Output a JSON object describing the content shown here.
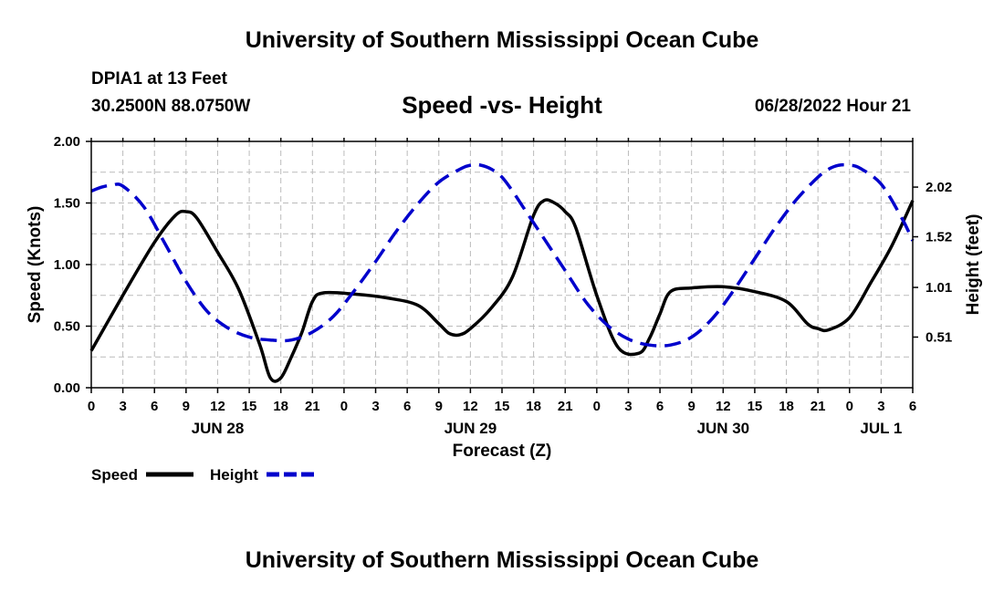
{
  "header": {
    "title": "University of Southern Mississippi Ocean Cube",
    "station": "DPIA1 at 13 Feet",
    "coords": "30.2500N  88.0750W",
    "chart_title": "Speed -vs- Height",
    "forecast_time": "06/28/2022 Hour 21"
  },
  "footer": {
    "title": "University of Southern Mississippi Ocean Cube"
  },
  "colors": {
    "speed": "#000000",
    "height": "#0000cc",
    "grid": "#bbbbbb"
  },
  "chart_data": {
    "type": "line",
    "title": "Speed -vs- Height",
    "xlabel": "Forecast (Z)",
    "ylabel": "Speed (Knots)",
    "y2label": "Height (feet)",
    "x_unit": "hours since JUN 28 00Z",
    "xlim": [
      0,
      78
    ],
    "ylim": [
      0,
      2.0
    ],
    "y2lim": [
      0.0,
      2.48
    ],
    "x_tick_labels": [
      "0",
      "3",
      "6",
      "9",
      "12",
      "15",
      "18",
      "21",
      "0",
      "3",
      "6",
      "9",
      "12",
      "15",
      "18",
      "21",
      "0",
      "3",
      "6",
      "9",
      "12",
      "15",
      "18",
      "21",
      "0",
      "3",
      "6"
    ],
    "y_tick_labels": [
      "0.00",
      "0.50",
      "1.00",
      "1.50",
      "2.00"
    ],
    "y2_ticks": [
      0.51,
      1.01,
      1.52,
      2.02
    ],
    "y2_tick_labels": [
      "0.51",
      "1.01",
      "1.52",
      "2.02"
    ],
    "date_labels": [
      {
        "label": "JUN 28",
        "hour": 12
      },
      {
        "label": "JUN 29",
        "hour": 36
      },
      {
        "label": "JUN 30",
        "hour": 60
      },
      {
        "label": "JUL 1",
        "hour": 75
      }
    ],
    "grid": true,
    "legend_position": "bottom-left",
    "series": [
      {
        "name": "Speed",
        "axis": "left",
        "style": "solid",
        "x": [
          0,
          3,
          6,
          8,
          9,
          10,
          12,
          14,
          16,
          17,
          18,
          19,
          20,
          21,
          22,
          25,
          28,
          31,
          33,
          34,
          35,
          36,
          38,
          40,
          42,
          43,
          44,
          45,
          46,
          48,
          50,
          52,
          53,
          54,
          55,
          57,
          60,
          63,
          66,
          68,
          69,
          70,
          72,
          74,
          76,
          78
        ],
        "values": [
          0.3,
          0.75,
          1.18,
          1.4,
          1.43,
          1.38,
          1.1,
          0.8,
          0.35,
          0.08,
          0.08,
          0.25,
          0.45,
          0.7,
          0.77,
          0.76,
          0.73,
          0.67,
          0.52,
          0.44,
          0.43,
          0.48,
          0.65,
          0.9,
          1.4,
          1.52,
          1.5,
          1.43,
          1.3,
          0.75,
          0.33,
          0.28,
          0.4,
          0.6,
          0.78,
          0.81,
          0.82,
          0.78,
          0.7,
          0.52,
          0.48,
          0.47,
          0.57,
          0.85,
          1.15,
          1.52
        ]
      },
      {
        "name": "Height",
        "axis": "right",
        "style": "dashed",
        "x": [
          0,
          1,
          2,
          3,
          5,
          7,
          9,
          11,
          13,
          15,
          17,
          19,
          21,
          23,
          25,
          27,
          29,
          31,
          33,
          35,
          36,
          37,
          38,
          39,
          40,
          41,
          43,
          45,
          47,
          49,
          51,
          53,
          55,
          57,
          59,
          61,
          63,
          65,
          67,
          69,
          70,
          71,
          72,
          73,
          75,
          77,
          78
        ],
        "values": [
          1.98,
          2.02,
          2.04,
          2.03,
          1.82,
          1.45,
          1.07,
          0.77,
          0.6,
          0.51,
          0.48,
          0.48,
          0.56,
          0.72,
          0.98,
          1.27,
          1.58,
          1.85,
          2.07,
          2.2,
          2.24,
          2.24,
          2.2,
          2.12,
          1.98,
          1.82,
          1.5,
          1.18,
          0.86,
          0.63,
          0.49,
          0.43,
          0.43,
          0.51,
          0.7,
          0.98,
          1.3,
          1.62,
          1.9,
          2.12,
          2.2,
          2.24,
          2.24,
          2.21,
          2.05,
          1.7,
          1.48
        ]
      }
    ]
  }
}
